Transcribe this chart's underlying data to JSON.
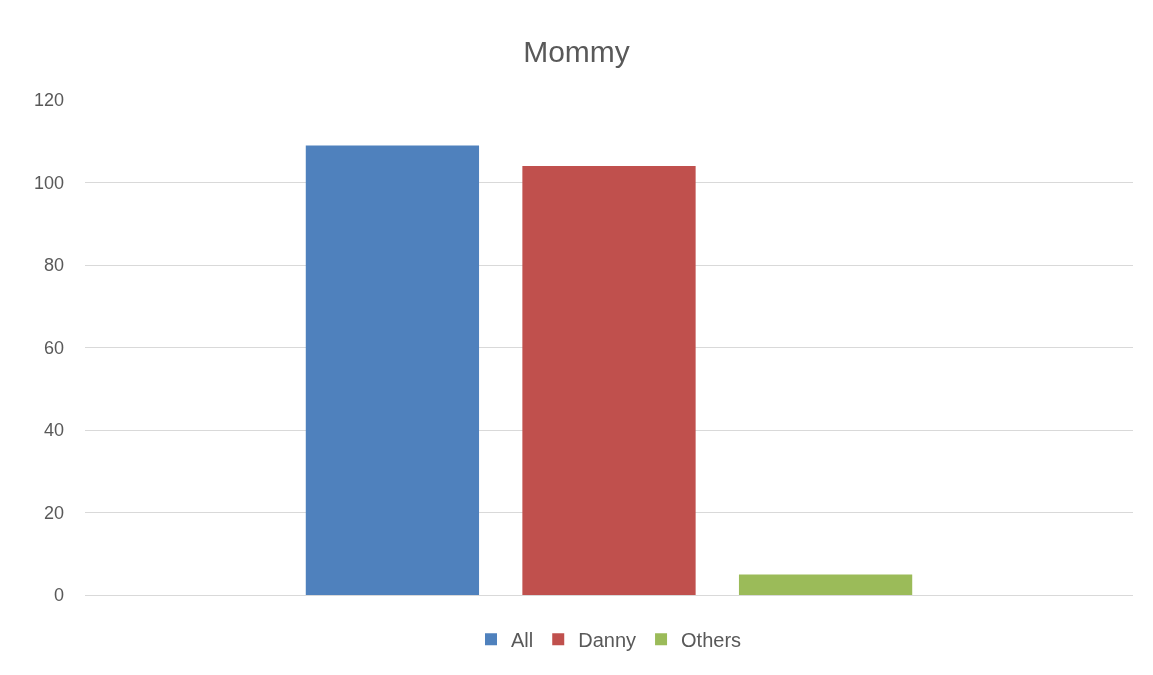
{
  "chart_data": {
    "type": "bar",
    "title": "Mommy",
    "categories": [
      null
    ],
    "series": [
      {
        "name": "All",
        "color": "#4f81bd",
        "values": [
          109
        ]
      },
      {
        "name": "Danny",
        "color": "#c0504d",
        "values": [
          104
        ]
      },
      {
        "name": "Others",
        "color": "#9bbb59",
        "values": [
          5
        ]
      }
    ],
    "ylim": [
      0,
      120
    ],
    "yticks": [
      0,
      20,
      40,
      60,
      80,
      100,
      120
    ],
    "grid": "y",
    "legend": "bottom"
  }
}
